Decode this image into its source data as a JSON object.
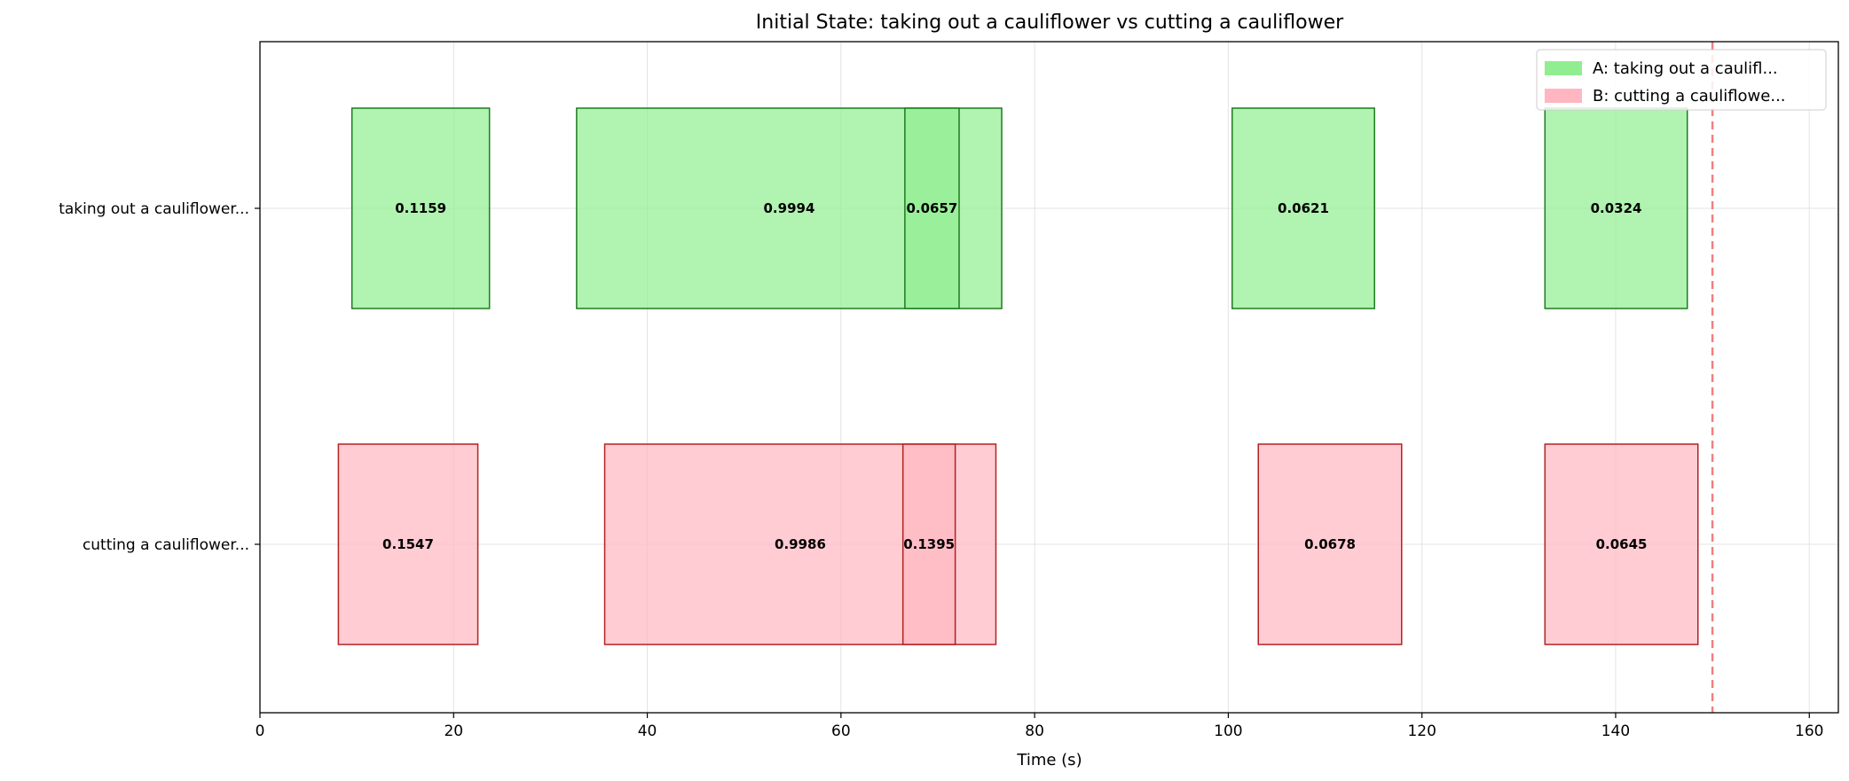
{
  "chart_data": {
    "type": "bar",
    "orientation": "horizontal-timeline",
    "title": "Initial State: taking out a cauliflower vs cutting a cauliflower",
    "xlabel": "Time (s)",
    "ylabel": "",
    "xlim": [
      0,
      163
    ],
    "xticks": [
      0,
      20,
      40,
      60,
      80,
      100,
      120,
      140,
      160
    ],
    "grid": true,
    "legend_position": "top-right",
    "colors": {
      "A_fill": "#90ee90",
      "A_edge": "#1e7b1e",
      "B_fill": "#ffb6c1",
      "B_edge": "#b22222",
      "reference_line": "#f08080"
    },
    "rows": [
      {
        "key": "A",
        "label": "taking out a cauliflower..."
      },
      {
        "key": "B",
        "label": "cutting a cauliflower..."
      }
    ],
    "legend": [
      {
        "key": "A",
        "label": "A: taking out a caulifl..."
      },
      {
        "key": "B",
        "label": "B: cutting a cauliflowe..."
      }
    ],
    "series": [
      {
        "key": "A",
        "segments": [
          {
            "start": 9.5,
            "end": 23.7,
            "value": "0.1159"
          },
          {
            "start": 32.7,
            "end": 76.6,
            "value": "0.9994"
          },
          {
            "start": 66.6,
            "end": 72.2,
            "value": "0.0657"
          },
          {
            "start": 100.4,
            "end": 115.1,
            "value": "0.0621"
          },
          {
            "start": 132.7,
            "end": 147.4,
            "value": "0.0324"
          }
        ]
      },
      {
        "key": "B",
        "segments": [
          {
            "start": 8.1,
            "end": 22.5,
            "value": "0.1547"
          },
          {
            "start": 35.6,
            "end": 76.0,
            "value": "0.9986"
          },
          {
            "start": 66.4,
            "end": 71.8,
            "value": "0.1395"
          },
          {
            "start": 103.1,
            "end": 117.9,
            "value": "0.0678"
          },
          {
            "start": 132.7,
            "end": 148.5,
            "value": "0.0645"
          }
        ]
      }
    ],
    "reference_line": {
      "x": 150
    }
  }
}
